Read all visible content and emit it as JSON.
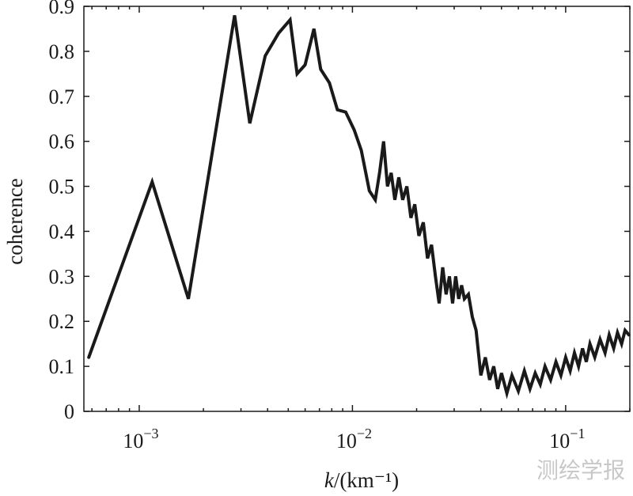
{
  "chart_data": {
    "type": "line",
    "xscale": "log",
    "xlim": [
      0.00055,
      0.2
    ],
    "ylim": [
      0,
      0.9
    ],
    "xlabel_italic": "k",
    "xlabel_rest": "/(km⁻¹)",
    "ylabel": "coherence",
    "grid": false,
    "x_ticks": [
      {
        "value": 0.001,
        "base": "10",
        "exp": "−3"
      },
      {
        "value": 0.01,
        "base": "10",
        "exp": "−2"
      },
      {
        "value": 0.1,
        "base": "10",
        "exp": "−1"
      }
    ],
    "y_ticks": [
      {
        "value": 0,
        "label": "0"
      },
      {
        "value": 0.1,
        "label": "0.1"
      },
      {
        "value": 0.2,
        "label": "0.2"
      },
      {
        "value": 0.3,
        "label": "0.3"
      },
      {
        "value": 0.4,
        "label": "0.4"
      },
      {
        "value": 0.5,
        "label": "0.5"
      },
      {
        "value": 0.6,
        "label": "0.6"
      },
      {
        "value": 0.7,
        "label": "0.7"
      },
      {
        "value": 0.8,
        "label": "0.8"
      },
      {
        "value": 0.9,
        "label": "0.9"
      }
    ],
    "series": [
      {
        "color": "#1a1a1a",
        "x": [
          0.00058,
          0.00115,
          0.0017,
          0.0028,
          0.0033,
          0.0039,
          0.0045,
          0.0051,
          0.0055,
          0.006,
          0.0066,
          0.0071,
          0.0078,
          0.0085,
          0.0093,
          0.0102,
          0.011,
          0.012,
          0.0128,
          0.0134,
          0.014,
          0.0146,
          0.0152,
          0.0158,
          0.0165,
          0.0172,
          0.018,
          0.0188,
          0.0196,
          0.0205,
          0.0215,
          0.0225,
          0.0235,
          0.0245,
          0.0255,
          0.0265,
          0.0275,
          0.0285,
          0.0295,
          0.0305,
          0.0315,
          0.0325,
          0.0335,
          0.035,
          0.0365,
          0.038,
          0.04,
          0.042,
          0.044,
          0.046,
          0.048,
          0.05,
          0.053,
          0.056,
          0.06,
          0.064,
          0.068,
          0.072,
          0.076,
          0.08,
          0.085,
          0.09,
          0.095,
          0.1,
          0.105,
          0.11,
          0.115,
          0.12,
          0.125,
          0.13,
          0.137,
          0.145,
          0.153,
          0.16,
          0.168,
          0.175,
          0.183,
          0.19,
          0.198
        ],
        "values": [
          0.12,
          0.51,
          0.25,
          0.88,
          0.64,
          0.79,
          0.84,
          0.87,
          0.75,
          0.77,
          0.85,
          0.76,
          0.73,
          0.67,
          0.665,
          0.625,
          0.58,
          0.49,
          0.47,
          0.53,
          0.6,
          0.5,
          0.53,
          0.47,
          0.52,
          0.47,
          0.5,
          0.43,
          0.46,
          0.39,
          0.42,
          0.34,
          0.37,
          0.3,
          0.24,
          0.32,
          0.26,
          0.3,
          0.24,
          0.3,
          0.25,
          0.28,
          0.25,
          0.26,
          0.21,
          0.18,
          0.08,
          0.12,
          0.07,
          0.1,
          0.05,
          0.085,
          0.04,
          0.08,
          0.045,
          0.09,
          0.05,
          0.085,
          0.06,
          0.1,
          0.07,
          0.11,
          0.08,
          0.12,
          0.09,
          0.13,
          0.1,
          0.14,
          0.11,
          0.15,
          0.12,
          0.16,
          0.13,
          0.17,
          0.14,
          0.175,
          0.15,
          0.18,
          0.17
        ]
      }
    ]
  },
  "watermark": "测绘学报"
}
